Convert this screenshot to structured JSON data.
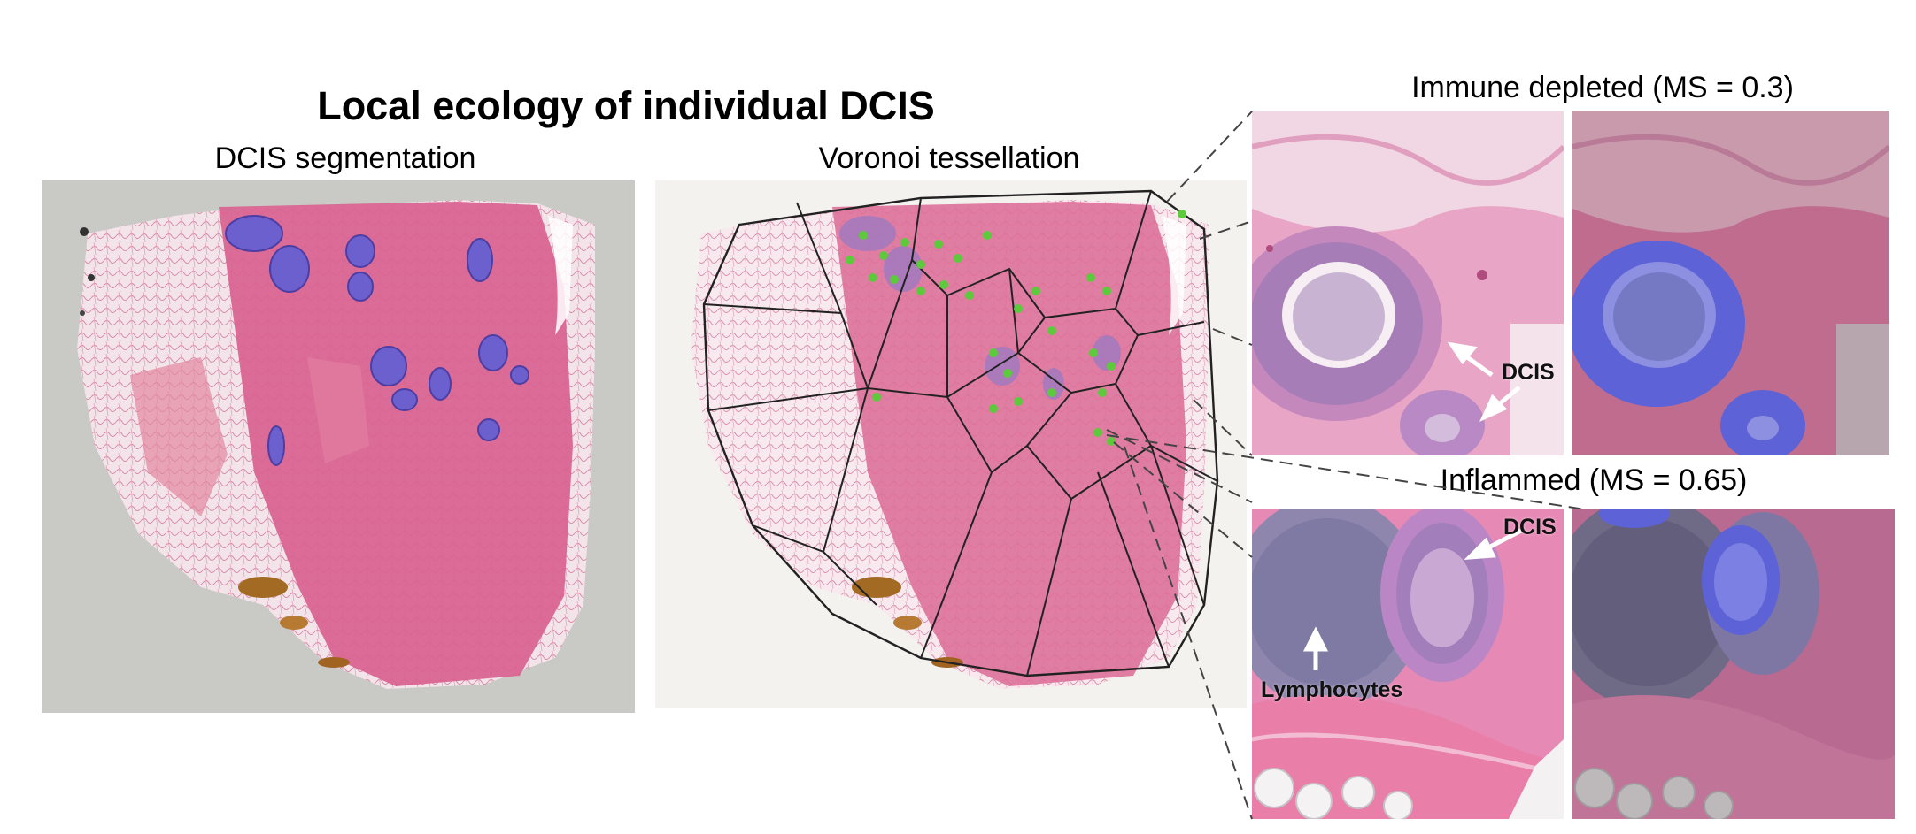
{
  "figure": {
    "title": "Local ecology of individual DCIS",
    "panels": {
      "segmentation": {
        "title": "DCIS segmentation"
      },
      "voronoi": {
        "title": "Voronoi tessellation"
      },
      "immune_depleted": {
        "title": "Immune depleted (MS = 0.3)",
        "label_dcis": "DCIS"
      },
      "inflammed": {
        "title": "Inflammed (MS = 0.65)",
        "label_dcis": "DCIS",
        "label_lymphocytes": "Lymphocytes"
      }
    }
  },
  "colors": {
    "tissue_pink": "#d9628f",
    "stroma_pale": "#f1dde6",
    "dcis_purple": "#8d6fb8",
    "segmentation_blue": "#4f5fe0",
    "seed_green": "#5dc93c",
    "pigment_brown": "#a36a24",
    "background_gray": "#c9cac6"
  }
}
